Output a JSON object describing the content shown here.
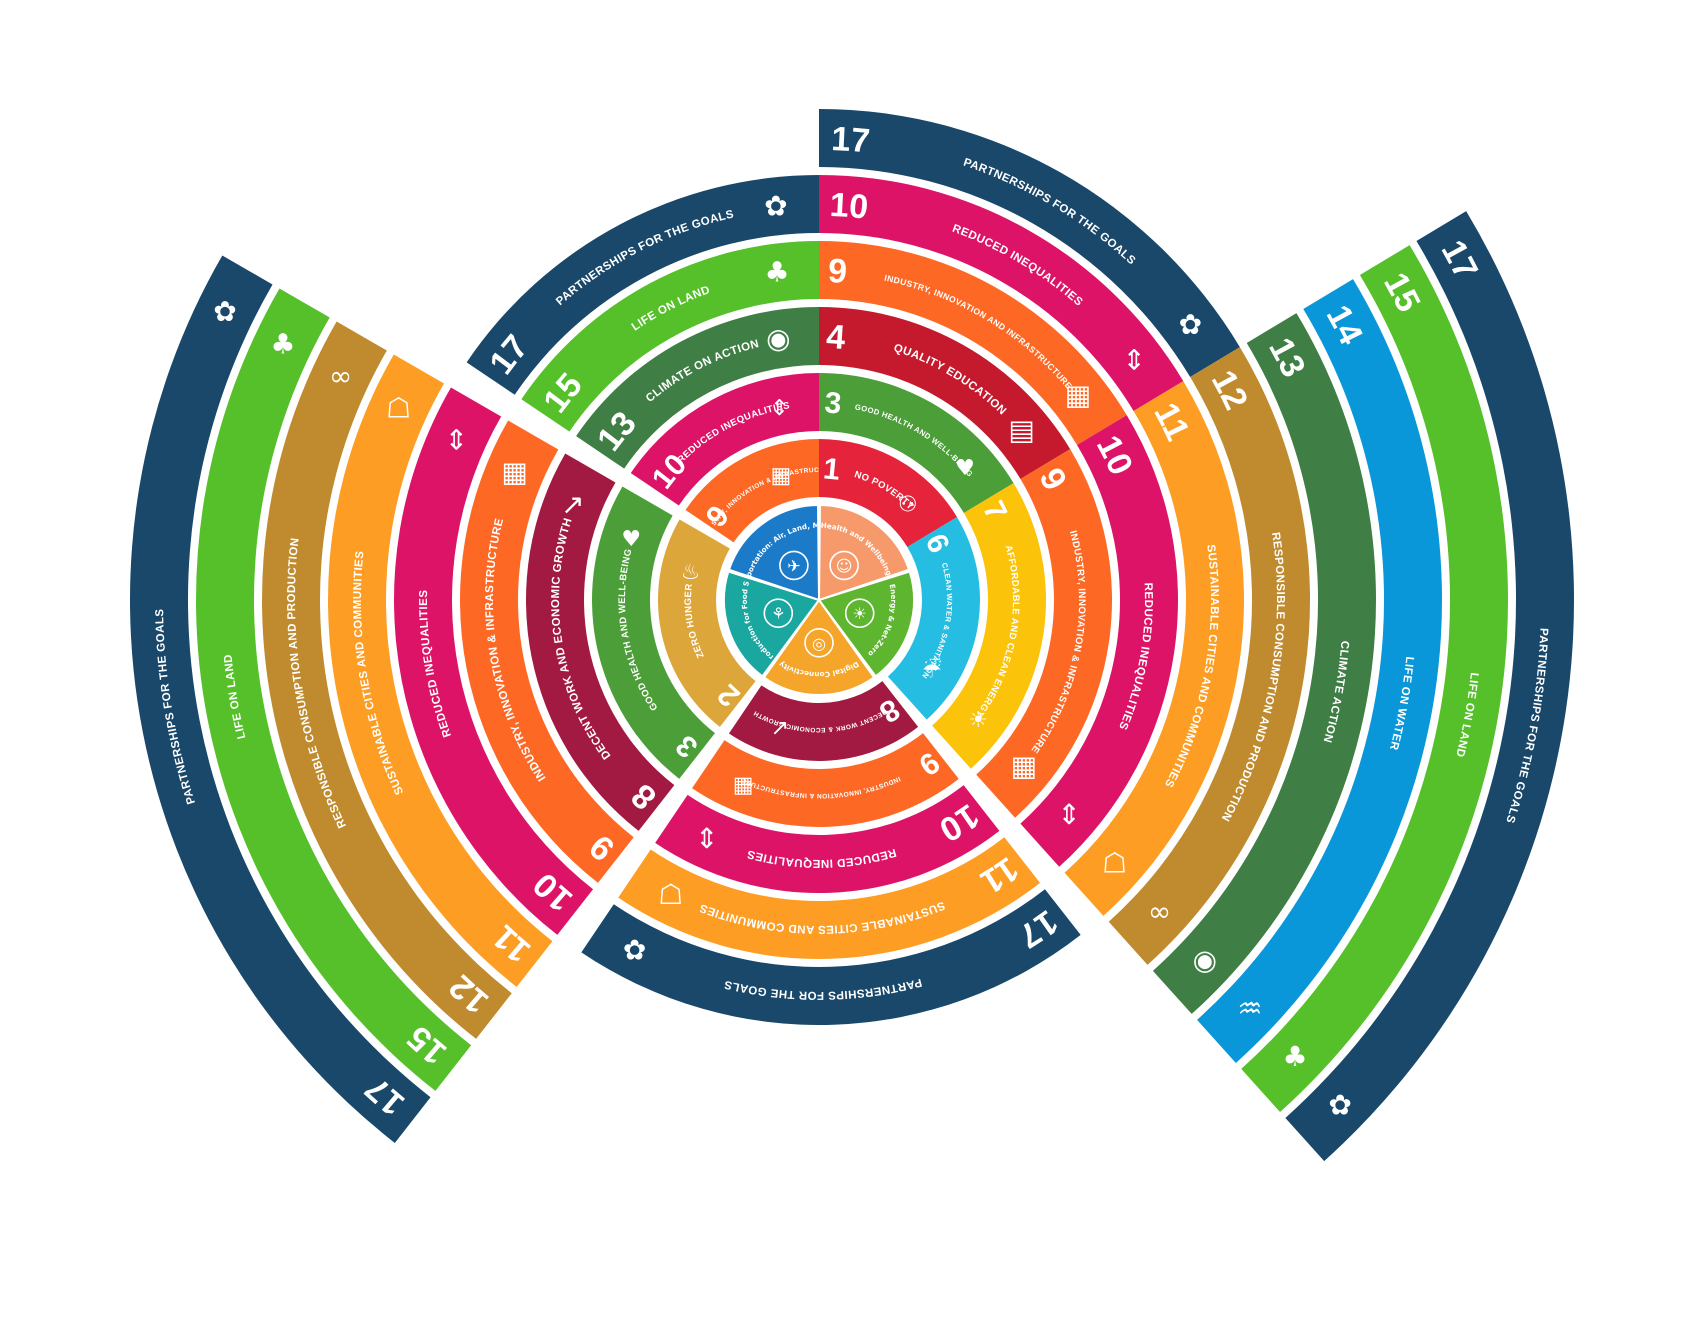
{
  "colors": {
    "g1": "#E5243B",
    "g2": "#DDA63A",
    "g3": "#4C9F38",
    "g4": "#C5192D",
    "g6": "#26BDE2",
    "g7": "#FCC30B",
    "g8": "#A21942",
    "g9": "#FD6925",
    "g10": "#DD1367",
    "g11": "#FD9D24",
    "g12": "#BF8B2E",
    "g13": "#3F7E44",
    "g14": "#0A97D9",
    "g15": "#56C02B",
    "g17": "#19486A"
  },
  "hub": [
    {
      "label": "Health and Wellbeing",
      "color": "#F79A6B",
      "icon": "person-icon"
    },
    {
      "label": "Green Energy & Net-Zero Waste",
      "color": "#5DB530",
      "icon": "bulb-icon"
    },
    {
      "label": "Digital Connectivity",
      "color": "#F4A52A",
      "icon": "globe-icon"
    },
    {
      "label": "Food Production for Food Security",
      "color": "#1AA7A0",
      "icon": "plant-icon"
    },
    {
      "label": "Transportation: Air, Land, Marine",
      "color": "#1C7BC9",
      "icon": "transport-icon"
    }
  ],
  "sections": [
    {
      "id": "top-right",
      "rings": [
        {
          "goal": "1",
          "label": "NO POVERTY",
          "color": "#E5243B",
          "icon": "family-icon"
        },
        {
          "goal": "3",
          "label": "GOOD HEALTH AND WELL-BEING",
          "color": "#4C9F38",
          "icon": "heartbeat-icon"
        },
        {
          "goal": "4",
          "label": "QUALITY EDUCATION",
          "color": "#C5192D",
          "icon": "book-icon"
        },
        {
          "goal": "9",
          "label": "INDUSTRY, INNOVATION AND INFRASTRUCTURE",
          "color": "#FD6925",
          "icon": "cubes-icon"
        },
        {
          "goal": "10",
          "label": "REDUCED INEQUALITIES",
          "color": "#DD1367",
          "icon": "equality-icon"
        },
        {
          "goal": "17",
          "label": "PARTNERSHIPS FOR THE GOALS",
          "color": "#19486A",
          "icon": "flower-icon"
        }
      ]
    },
    {
      "id": "right",
      "rings": [
        {
          "goal": "6",
          "label": "CLEAN WATER & SANITATION",
          "color": "#26BDE2",
          "icon": "water-icon"
        },
        {
          "goal": "7",
          "label": "AFFORDABLE AND CLEAN ENERGY",
          "color": "#FCC30B",
          "icon": "sun-icon"
        },
        {
          "goal": "9",
          "label": "INDUSTRY, INNOVATION & INFRASTRUCTURE",
          "color": "#FD6925",
          "icon": "cubes-icon"
        },
        {
          "goal": "10",
          "label": "REDUCED INEQUALITIES",
          "color": "#DD1367",
          "icon": "equality-icon"
        },
        {
          "goal": "11",
          "label": "SUSTAINABLE CITIES AND COMMUNITIES",
          "color": "#FD9D24",
          "icon": "city-icon"
        },
        {
          "goal": "12",
          "label": "RESPONSIBLE CONSUMPTION AND PRODUCTION",
          "color": "#BF8B2E",
          "icon": "infinity-icon"
        },
        {
          "goal": "13",
          "label": "CLIMATE ACTION",
          "color": "#3F7E44",
          "icon": "eye-globe-icon"
        },
        {
          "goal": "14",
          "label": "LIFE ON WATER",
          "color": "#0A97D9",
          "icon": "fish-icon"
        },
        {
          "goal": "15",
          "label": "LIFE ON LAND",
          "color": "#56C02B",
          "icon": "tree-icon"
        },
        {
          "goal": "17",
          "label": "PARTNERSHIPS FOR THE GOALS",
          "color": "#19486A",
          "icon": "flower-icon"
        }
      ]
    },
    {
      "id": "bottom",
      "rings": [
        {
          "goal": "8",
          "label": "DECENT WORK & ECONOMIC GROWTH",
          "color": "#A21942",
          "icon": "growth-icon"
        },
        {
          "goal": "9",
          "label": "INDUSTRY, INNOVATION & INFRASTRUCTURE",
          "color": "#FD6925",
          "icon": "cubes-icon"
        },
        {
          "goal": "10",
          "label": "REDUCED INEQUALITIES",
          "color": "#DD1367",
          "icon": "equality-icon"
        },
        {
          "goal": "11",
          "label": "SUSTAINABLE CITIES AND COMMUNITIES",
          "color": "#FD9D24",
          "icon": "city-icon"
        },
        {
          "goal": "17",
          "label": "PARTNERSHIPS FOR THE GOALS",
          "color": "#19486A",
          "icon": "flower-icon"
        }
      ]
    },
    {
      "id": "left",
      "rings": [
        {
          "goal": "2",
          "label": "ZERO HUNGER",
          "color": "#DDA63A",
          "icon": "bowl-icon"
        },
        {
          "goal": "3",
          "label": "GOOD HEALTH AND WELL-BEING",
          "color": "#4C9F38",
          "icon": "heartbeat-icon"
        },
        {
          "goal": "8",
          "label": "DECENT WORK AND ECONOMIC GROWTH",
          "color": "#A21942",
          "icon": "growth-icon"
        },
        {
          "goal": "9",
          "label": "INDUSTRY, INNOVATION & INFRASTRUCTURE",
          "color": "#FD6925",
          "icon": "cubes-icon"
        },
        {
          "goal": "10",
          "label": "REDUCED INEQUALITIES",
          "color": "#DD1367",
          "icon": "equality-icon"
        },
        {
          "goal": "11",
          "label": "SUSTAINABLE CITIES AND COMMUNITIES",
          "color": "#FD9D24",
          "icon": "city-icon"
        },
        {
          "goal": "12",
          "label": "RESPONSIBLE CONSUMPTION AND PRODUCTION",
          "color": "#BF8B2E",
          "icon": "infinity-icon"
        },
        {
          "goal": "15",
          "label": "LIFE ON LAND",
          "color": "#56C02B",
          "icon": "tree-icon"
        },
        {
          "goal": "17",
          "label": "PARTNERSHIPS FOR THE GOALS",
          "color": "#19486A",
          "icon": "flower-icon"
        }
      ]
    },
    {
      "id": "top-left",
      "rings": [
        {
          "goal": "9",
          "label": "INDUSTRY, INNOVATION & INFRASTRUCTURE",
          "color": "#FD6925",
          "icon": "cubes-icon"
        },
        {
          "goal": "10",
          "label": "REDUCED INEQUALITIES",
          "color": "#DD1367",
          "icon": "equality-icon"
        },
        {
          "goal": "13",
          "label": "CLIMATE ON ACTION",
          "color": "#3F7E44",
          "icon": "eye-globe-icon"
        },
        {
          "goal": "15",
          "label": "LIFE ON LAND",
          "color": "#56C02B",
          "icon": "tree-icon"
        },
        {
          "goal": "17",
          "label": "PARTNERSHIPS FOR THE GOALS",
          "color": "#19486A",
          "icon": "flower-icon"
        }
      ]
    }
  ]
}
